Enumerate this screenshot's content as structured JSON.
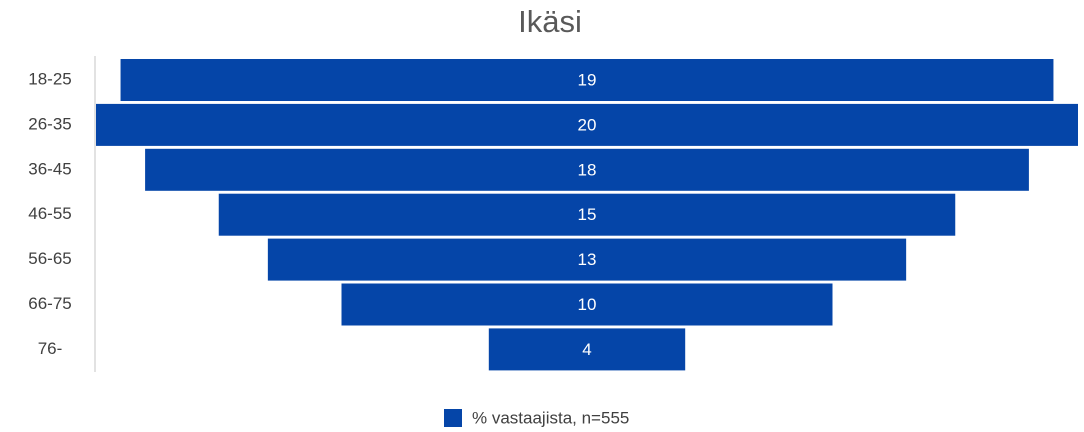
{
  "chart_data": {
    "type": "funnel",
    "title": "Ikäsi",
    "categories": [
      "18-25",
      "26-35",
      "36-45",
      "46-55",
      "56-65",
      "66-75",
      "76-"
    ],
    "series": [
      {
        "name": "% vastaajista, n=555",
        "color": "#0545a8",
        "values": [
          19,
          20,
          18,
          15,
          13,
          10,
          4
        ]
      }
    ]
  }
}
